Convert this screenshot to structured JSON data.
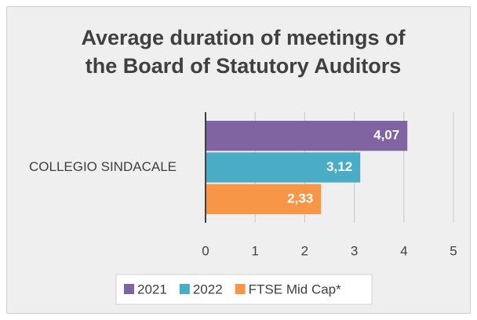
{
  "chart_data": {
    "type": "bar",
    "orientation": "horizontal",
    "title": "Average duration of meetings of the Board of Statutory Auditors",
    "categories": [
      "COLLEGIO SINDACALE"
    ],
    "series": [
      {
        "name": "2021",
        "color": "#8064a2",
        "values": [
          4.07
        ],
        "value_labels": [
          "4,07"
        ]
      },
      {
        "name": "2022",
        "color": "#4bacc6",
        "values": [
          3.12
        ],
        "value_labels": [
          "3,12"
        ]
      },
      {
        "name": "FTSE Mid Cap*",
        "color": "#f79646",
        "values": [
          2.33
        ],
        "value_labels": [
          "2,33"
        ]
      }
    ],
    "xlim": [
      0,
      5
    ],
    "xticks": [
      0,
      1,
      2,
      3,
      4,
      5
    ],
    "grid": true,
    "legend": "bottom"
  }
}
